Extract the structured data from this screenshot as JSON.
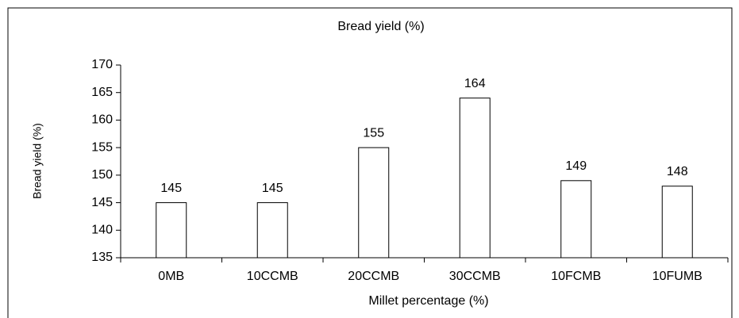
{
  "chart_data": {
    "type": "bar",
    "title": "Bread yield (%)",
    "x_label": "Millet percentage (%)",
    "y_label": "Bread yield (%)",
    "categories": [
      "0MB",
      "10CCMB",
      "20CCMB",
      "30CCMB",
      "10FCMB",
      "10FUMB"
    ],
    "values": [
      145,
      145,
      155,
      164,
      149,
      148
    ],
    "color": "#ffffff",
    "edge_color": "#000000",
    "ylim": [
      135,
      170
    ],
    "yticks": [
      135,
      140,
      145,
      150,
      155,
      160,
      165,
      170
    ],
    "grid": false
  }
}
